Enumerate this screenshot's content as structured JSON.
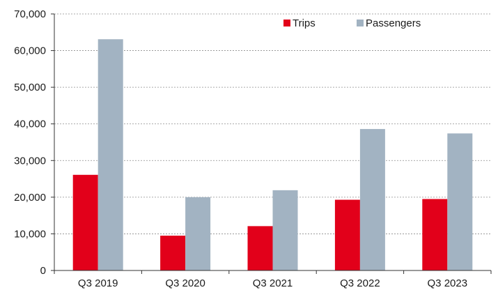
{
  "chart_data": {
    "type": "bar",
    "title": "",
    "xlabel": "",
    "ylabel": "",
    "categories": [
      "Q3 2019",
      "Q3 2020",
      "Q3 2021",
      "Q3 2022",
      "Q3 2023"
    ],
    "series": [
      {
        "name": "Trips",
        "values": [
          26100,
          9500,
          12100,
          19300,
          19500
        ],
        "color": "#e2001a"
      },
      {
        "name": "Passengers",
        "values": [
          63100,
          20000,
          21900,
          38600,
          37400
        ],
        "color": "#a2b3c2"
      }
    ],
    "ylim": [
      0,
      70000
    ],
    "yticks": [
      0,
      10000,
      20000,
      30000,
      40000,
      50000,
      60000,
      70000
    ],
    "ytick_labels": [
      "0",
      "10,000",
      "20,000",
      "30,000",
      "40,000",
      "50,000",
      "60,000",
      "70,000"
    ],
    "grid": true,
    "legend_position": "top-right"
  }
}
